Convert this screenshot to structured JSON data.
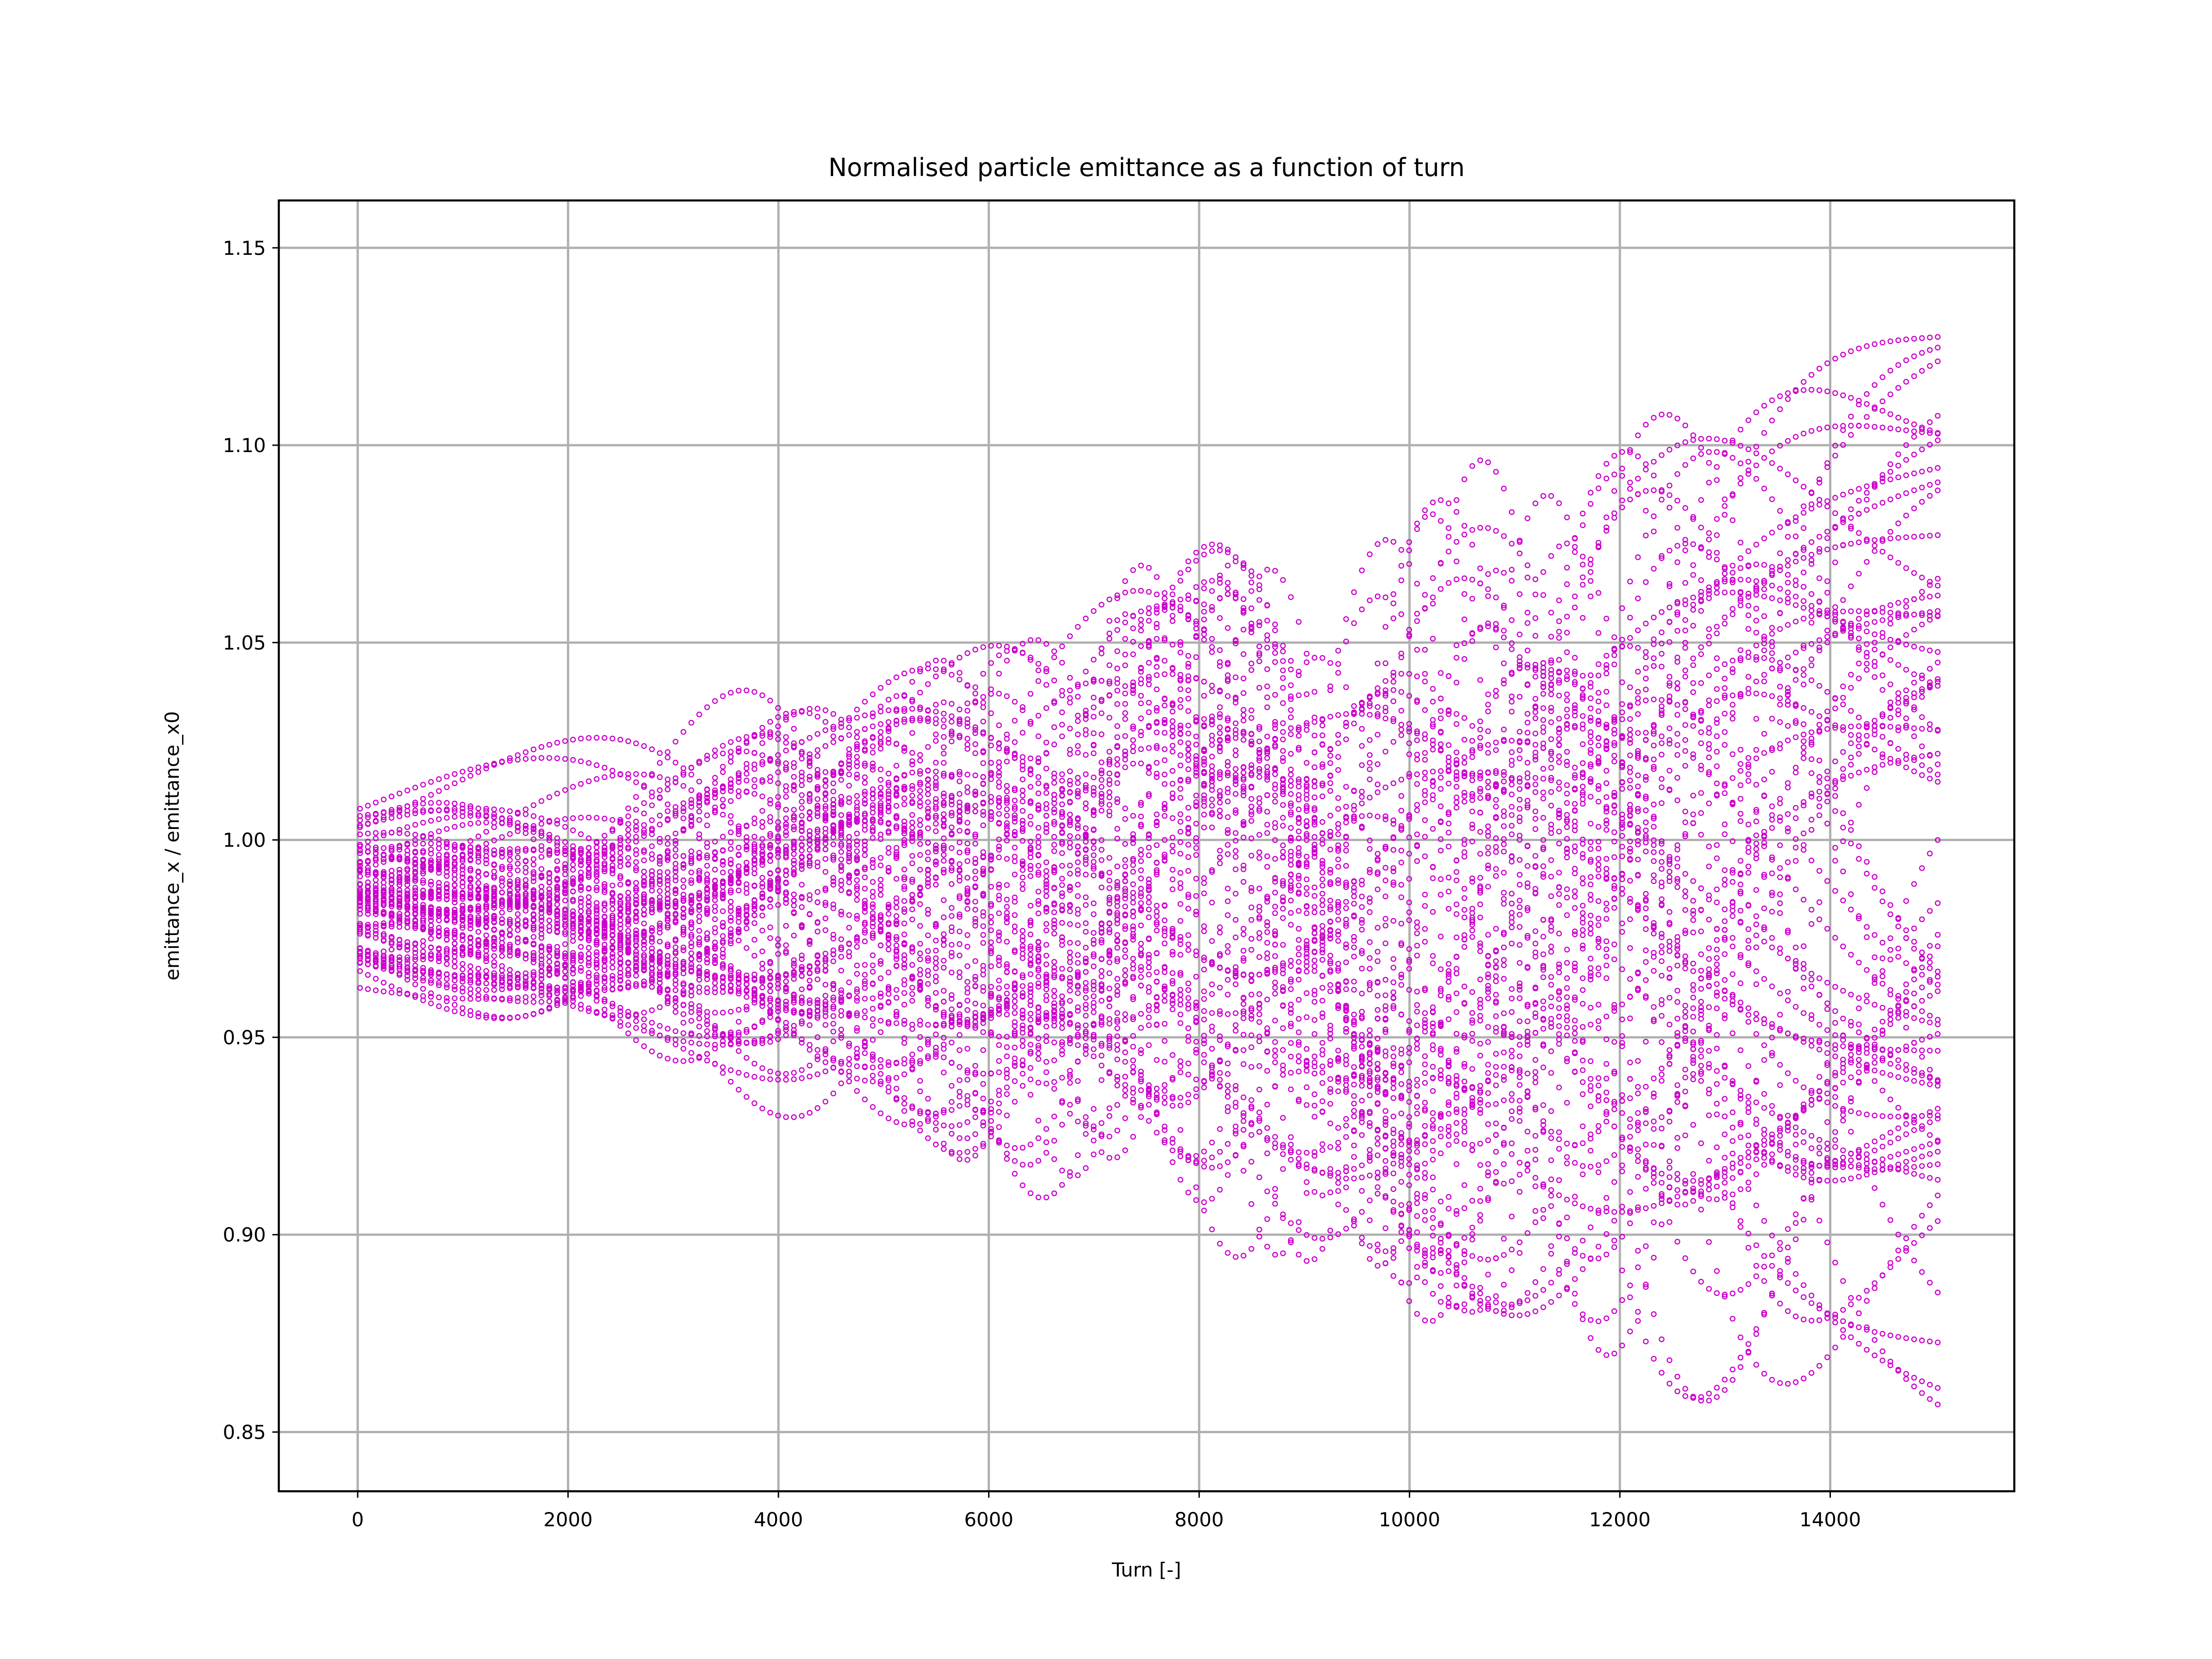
{
  "chart_data": {
    "type": "scatter",
    "title": "Normalised particle emittance as a function of turn",
    "xlabel": "Turn [-]",
    "ylabel": "emittance_x / emittance_x0",
    "xlim": [
      -750,
      15750
    ],
    "ylim": [
      0.835,
      1.162
    ],
    "xticks": [
      0,
      2000,
      4000,
      6000,
      8000,
      10000,
      12000,
      14000
    ],
    "xtick_labels": [
      "0",
      "2000",
      "4000",
      "6000",
      "8000",
      "10000",
      "12000",
      "14000"
    ],
    "yticks": [
      0.85,
      0.9,
      0.95,
      1.0,
      1.05,
      1.1,
      1.15
    ],
    "ytick_labels": [
      "0.85",
      "0.90",
      "0.95",
      "1.00",
      "1.05",
      "1.10",
      "1.15"
    ],
    "grid": true,
    "marker": "hollow-circle",
    "color": "#cc00cc",
    "series": [
      {
        "name": "",
        "x_start": 0,
        "x_end": 15000,
        "y_center": 0.985,
        "envelope_at_start": 0.015,
        "envelope_at_end": 0.148
      }
    ]
  }
}
